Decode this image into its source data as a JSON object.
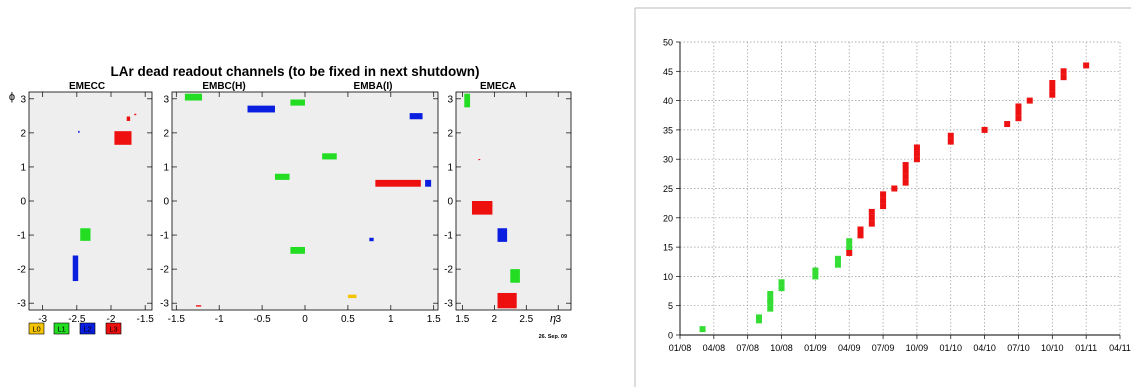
{
  "chart_data": [
    {
      "type": "heatmap",
      "title": "LAr dead readout channels (to be fixed in next shutdown)",
      "ylabel": "ϕ",
      "xlabel": "η",
      "date_label": "26. Sep. 09",
      "legend": [
        {
          "label": "L0",
          "color": "#f5c400"
        },
        {
          "label": "L1",
          "color": "#22dd22"
        },
        {
          "label": "L2",
          "color": "#0a1ee0"
        },
        {
          "label": "L3",
          "color": "#ee0f0f"
        }
      ],
      "panels": [
        {
          "name": "EMECC",
          "xlim": [
            -3.2,
            -1.4
          ],
          "ylim": [
            -3.2,
            3.2
          ],
          "xticks": [
            "-3",
            "-2.5",
            "-2",
            "-1.5"
          ],
          "xtick_values": [
            -3,
            -2.5,
            -2,
            -1.5
          ],
          "yticks": [
            "-3",
            "-2",
            "-1",
            "0",
            "1",
            "2",
            "3"
          ],
          "yticks_labeled": true,
          "cells": [
            {
              "x0": -1.95,
              "x1": -1.7,
              "y0": 1.65,
              "y1": 2.05,
              "layer": "L3"
            },
            {
              "x0": -1.77,
              "x1": -1.72,
              "y0": 2.35,
              "y1": 2.48,
              "layer": "L3"
            },
            {
              "x0": -1.66,
              "x1": -1.63,
              "y0": 2.52,
              "y1": 2.56,
              "layer": "L3"
            },
            {
              "x0": -2.48,
              "x1": -2.46,
              "y0": 2.0,
              "y1": 2.06,
              "layer": "L2"
            },
            {
              "x0": -2.45,
              "x1": -2.3,
              "y0": -1.17,
              "y1": -0.8,
              "layer": "L1"
            },
            {
              "x0": -2.56,
              "x1": -2.48,
              "y0": -2.35,
              "y1": -1.6,
              "layer": "L2"
            }
          ]
        },
        {
          "name": "EMBC(H)",
          "secondary_name": "EMBA(I)",
          "xlim": [
            -1.55,
            1.55
          ],
          "ylim": [
            -3.2,
            3.2
          ],
          "xticks": [
            "-1.5",
            "-1",
            "-0.5",
            "0",
            "0.5",
            "1",
            "1.5"
          ],
          "xtick_values": [
            -1.5,
            -1,
            -0.5,
            0,
            0.5,
            1,
            1.5
          ],
          "yticks": [
            "-3",
            "-2",
            "-1",
            "0",
            "1",
            "2",
            "3"
          ],
          "yticks_labeled": true,
          "cells": [
            {
              "x0": -1.4,
              "x1": -1.2,
              "y0": 2.95,
              "y1": 3.15,
              "layer": "L1"
            },
            {
              "x0": -0.67,
              "x1": -0.35,
              "y0": 2.6,
              "y1": 2.8,
              "layer": "L2"
            },
            {
              "x0": -0.17,
              "x1": 0.0,
              "y0": 2.8,
              "y1": 2.98,
              "layer": "L1"
            },
            {
              "x0": 1.22,
              "x1": 1.37,
              "y0": 2.4,
              "y1": 2.58,
              "layer": "L2"
            },
            {
              "x0": 0.2,
              "x1": 0.37,
              "y0": 1.22,
              "y1": 1.4,
              "layer": "L1"
            },
            {
              "x0": -0.35,
              "x1": -0.18,
              "y0": 0.62,
              "y1": 0.8,
              "layer": "L1"
            },
            {
              "x0": 0.82,
              "x1": 1.35,
              "y0": 0.42,
              "y1": 0.62,
              "layer": "L3"
            },
            {
              "x0": 1.4,
              "x1": 1.47,
              "y0": 0.42,
              "y1": 0.62,
              "layer": "L2"
            },
            {
              "x0": 0.75,
              "x1": 0.8,
              "y0": -1.18,
              "y1": -1.08,
              "layer": "L2"
            },
            {
              "x0": -0.17,
              "x1": 0.0,
              "y0": -1.55,
              "y1": -1.35,
              "layer": "L1"
            },
            {
              "x0": 0.5,
              "x1": 0.6,
              "y0": -2.85,
              "y1": -2.75,
              "layer": "L0"
            },
            {
              "x0": -1.27,
              "x1": -1.21,
              "y0": -3.1,
              "y1": -3.06,
              "layer": "L3"
            }
          ]
        },
        {
          "name": "EMECA",
          "xlim": [
            1.4,
            3.2
          ],
          "ylim": [
            -3.2,
            3.2
          ],
          "xticks": [
            "1.5",
            "2",
            "2.5",
            "3"
          ],
          "xtick_values": [
            1.5,
            2,
            2.5,
            3
          ],
          "yticks": [
            "-3",
            "-2",
            "-1",
            "0",
            "1",
            "2",
            "3"
          ],
          "yticks_labeled": true,
          "cells": [
            {
              "x0": 1.53,
              "x1": 1.62,
              "y0": 2.75,
              "y1": 3.15,
              "layer": "L1"
            },
            {
              "x0": 1.75,
              "x1": 1.78,
              "y0": 1.2,
              "y1": 1.23,
              "layer": "L3"
            },
            {
              "x0": 1.65,
              "x1": 1.97,
              "y0": -0.4,
              "y1": 0.0,
              "layer": "L3"
            },
            {
              "x0": 2.05,
              "x1": 2.2,
              "y0": -1.2,
              "y1": -0.8,
              "layer": "L2"
            },
            {
              "x0": 2.25,
              "x1": 2.4,
              "y0": -2.4,
              "y1": -2.0,
              "layer": "L1"
            },
            {
              "x0": 2.05,
              "x1": 2.35,
              "y0": -3.15,
              "y1": -2.7,
              "layer": "L3"
            }
          ]
        }
      ]
    },
    {
      "type": "scatter",
      "xlim": [
        "01/08",
        "04/11"
      ],
      "xtick_labels": [
        "01/08",
        "04/08",
        "07/08",
        "10/08",
        "01/09",
        "04/09",
        "07/09",
        "10/09",
        "01/10",
        "04/10",
        "07/10",
        "10/10",
        "01/11",
        "04/11"
      ],
      "ylim": [
        0,
        50
      ],
      "yticks": [
        0,
        5,
        10,
        15,
        20,
        25,
        30,
        35,
        40,
        45,
        50
      ],
      "grid": true,
      "series": [
        {
          "color": "#33dd33",
          "points": [
            {
              "x": "03/08",
              "y": 1
            },
            {
              "x": "08/08",
              "y": 2.5
            },
            {
              "x": "08/08",
              "y": 3
            },
            {
              "x": "09/08",
              "y": 4.5
            },
            {
              "x": "09/08",
              "y": 5.5
            },
            {
              "x": "09/08",
              "y": 6
            },
            {
              "x": "09/08",
              "y": 7
            },
            {
              "x": "10/08",
              "y": 8
            },
            {
              "x": "10/08",
              "y": 9
            },
            {
              "x": "01/09",
              "y": 10
            },
            {
              "x": "01/09",
              "y": 11
            },
            {
              "x": "03/09",
              "y": 12
            },
            {
              "x": "03/09",
              "y": 13
            },
            {
              "x": "04/09",
              "y": 15
            },
            {
              "x": "04/09",
              "y": 16
            }
          ]
        },
        {
          "color": "#ee1111",
          "points": [
            {
              "x": "04/09",
              "y": 14
            },
            {
              "x": "05/09",
              "y": 17
            },
            {
              "x": "05/09",
              "y": 18
            },
            {
              "x": "06/09",
              "y": 19
            },
            {
              "x": "06/09",
              "y": 20
            },
            {
              "x": "06/09",
              "y": 21
            },
            {
              "x": "07/09",
              "y": 22
            },
            {
              "x": "07/09",
              "y": 23
            },
            {
              "x": "07/09",
              "y": 24
            },
            {
              "x": "08/09",
              "y": 25
            },
            {
              "x": "09/09",
              "y": 26
            },
            {
              "x": "09/09",
              "y": 27
            },
            {
              "x": "09/09",
              "y": 28
            },
            {
              "x": "09/09",
              "y": 29
            },
            {
              "x": "10/09",
              "y": 30
            },
            {
              "x": "10/09",
              "y": 31
            },
            {
              "x": "10/09",
              "y": 32
            },
            {
              "x": "01/10",
              "y": 33
            },
            {
              "x": "01/10",
              "y": 34
            },
            {
              "x": "04/10",
              "y": 35
            },
            {
              "x": "06/10",
              "y": 36
            },
            {
              "x": "07/10",
              "y": 37
            },
            {
              "x": "07/10",
              "y": 38
            },
            {
              "x": "07/10",
              "y": 39
            },
            {
              "x": "08/10",
              "y": 40
            },
            {
              "x": "10/10",
              "y": 41
            },
            {
              "x": "10/10",
              "y": 42
            },
            {
              "x": "10/10",
              "y": 43
            },
            {
              "x": "11/10",
              "y": 44
            },
            {
              "x": "11/10",
              "y": 45
            },
            {
              "x": "01/11",
              "y": 46
            }
          ]
        }
      ]
    }
  ]
}
